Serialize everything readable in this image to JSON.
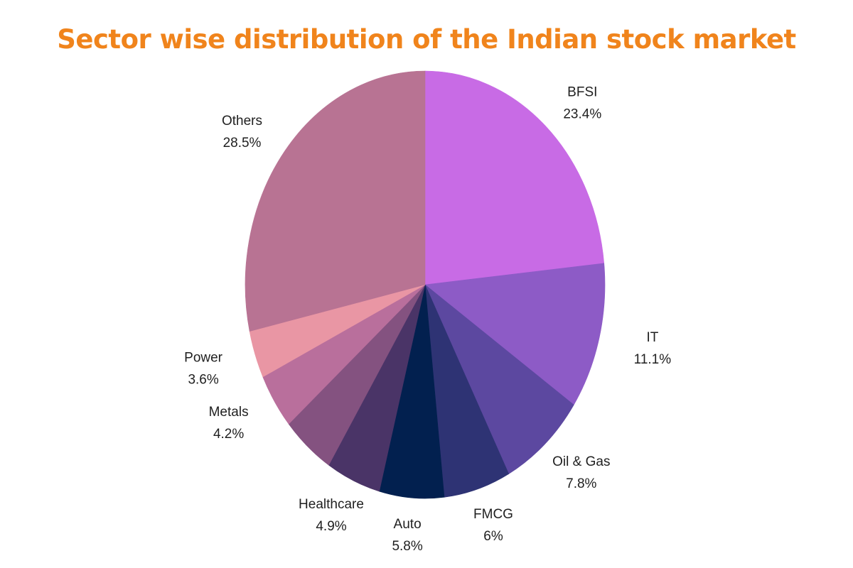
{
  "chart_data": {
    "type": "pie",
    "title": "Sector wise distribution of the Indian stock market",
    "slices": [
      {
        "name": "BFSI",
        "value": 23.4,
        "label": "23.4%",
        "color": "#c86be5"
      },
      {
        "name": "IT",
        "value": 11.1,
        "label": "11.1%",
        "color": "#8d5bc6"
      },
      {
        "name": "Oil & Gas",
        "value": 7.8,
        "label": "7.8%",
        "color": "#5c48a0"
      },
      {
        "name": "FMCG",
        "value": 6,
        "label": "6%",
        "color": "#2e3374"
      },
      {
        "name": "Auto",
        "value": 5.8,
        "label": "5.8%",
        "color": "#02204f"
      },
      {
        "name": "Healthcare",
        "value": 4.9,
        "label": "4.9%",
        "color": "#4a3467"
      },
      {
        "name": "",
        "value": 4.7,
        "label": "",
        "color": "#845280"
      },
      {
        "name": "Metals",
        "value": 4.2,
        "label": "4.2%",
        "color": "#b96f9c"
      },
      {
        "name": "Power",
        "value": 3.6,
        "label": "3.6%",
        "color": "#e996a4"
      },
      {
        "name": "Others",
        "value": 28.5,
        "label": "28.5%",
        "color": "#b87393"
      }
    ],
    "start": "12 o'clock",
    "direction": "clockwise",
    "legend": "none"
  }
}
